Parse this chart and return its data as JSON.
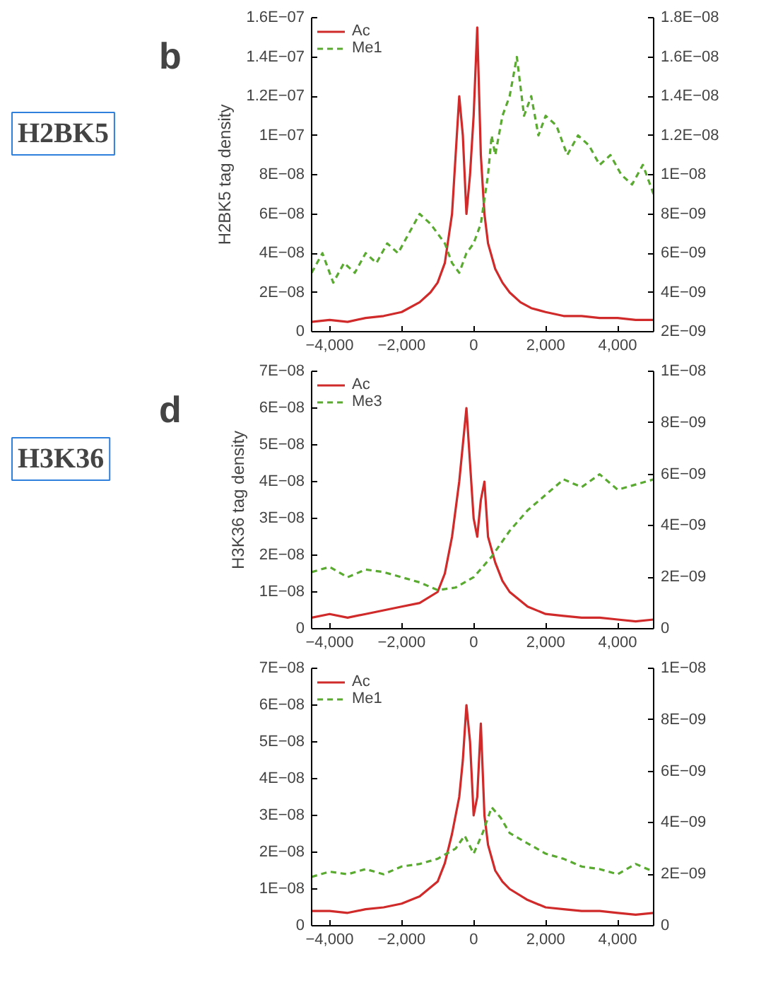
{
  "chart_data": [
    {
      "type": "line",
      "ylabel": "H2BK5 tag density",
      "annotations": [
        "b",
        "H2BK5"
      ],
      "legend": "top left",
      "xlim": [
        -4500,
        5000
      ],
      "xticks": [
        {
          "value": -4000,
          "label": "−4,000"
        },
        {
          "value": -2000,
          "label": "−2,000"
        },
        0,
        {
          "value": 2000,
          "label": "2,000"
        },
        {
          "value": 4000,
          "label": "4,000"
        }
      ],
      "ylim": [
        0,
        1.6e-07
      ],
      "yticks": [
        0,
        {
          "value": 2e-08,
          "label": "2E−08"
        },
        {
          "value": 4e-08,
          "label": "4E−08"
        },
        {
          "value": 6e-08,
          "label": "6E−08"
        },
        {
          "value": 8e-08,
          "label": "8E−08"
        },
        {
          "value": 1e-07,
          "label": "1E−07"
        },
        {
          "value": 1.2e-07,
          "label": "1.2E−07"
        },
        {
          "value": 1.4e-07,
          "label": "1.4E−07"
        },
        {
          "value": 1.6e-07,
          "label": "1.6E−07"
        }
      ],
      "y2lim": [
        2e-09,
        1.8e-08
      ],
      "y2ticks": [
        {
          "value": 2e-09,
          "label": "2E−09"
        },
        {
          "value": 4e-09,
          "label": "4E−09"
        },
        {
          "value": 6e-09,
          "label": "6E−09"
        },
        {
          "value": 8e-09,
          "label": "8E−09"
        },
        {
          "value": 1e-08,
          "label": "1E−08"
        },
        {
          "value": 1.2e-08,
          "label": "1.2E−08"
        },
        {
          "value": 1.4e-08,
          "label": "1.4E−08"
        },
        {
          "value": 1.6e-08,
          "label": "1.6E−08"
        },
        {
          "value": 1.8e-08,
          "label": "1.8E−08"
        }
      ],
      "series": [
        {
          "name": "Ac",
          "color": "#d02a2a",
          "line_style": "solid",
          "x": [
            -4500,
            -4000,
            -3500,
            -3000,
            -2500,
            -2000,
            -1500,
            -1200,
            -1000,
            -800,
            -600,
            -500,
            -400,
            -300,
            -200,
            -100,
            0,
            100,
            200,
            300,
            400,
            600,
            800,
            1000,
            1300,
            1600,
            2000,
            2500,
            3000,
            3500,
            4000,
            4500,
            5000
          ],
          "values": [
            5e-09,
            6e-09,
            5e-09,
            7e-09,
            8e-09,
            1e-08,
            1.5e-08,
            2e-08,
            2.5e-08,
            3.5e-08,
            6e-08,
            9e-08,
            1.2e-07,
            1e-07,
            6e-08,
            8e-08,
            1.1e-07,
            1.55e-07,
            9e-08,
            6e-08,
            4.5e-08,
            3.2e-08,
            2.5e-08,
            2e-08,
            1.5e-08,
            1.2e-08,
            1e-08,
            8e-09,
            8e-09,
            7e-09,
            7e-09,
            6e-09,
            6e-09
          ]
        },
        {
          "name": "Me1",
          "color": "#5aaa32",
          "line_style": "dashed",
          "axis": "y2",
          "x": [
            -4500,
            -4200,
            -3900,
            -3600,
            -3300,
            -3000,
            -2700,
            -2400,
            -2100,
            -1800,
            -1500,
            -1200,
            -1000,
            -800,
            -600,
            -400,
            -200,
            0,
            200,
            400,
            500,
            600,
            800,
            1000,
            1200,
            1400,
            1600,
            1800,
            2000,
            2300,
            2600,
            2900,
            3200,
            3500,
            3800,
            4100,
            4400,
            4700,
            5000
          ],
          "values": [
            5e-09,
            6e-09,
            4.5e-09,
            5.5e-09,
            5e-09,
            6e-09,
            5.5e-09,
            6.5e-09,
            6e-09,
            7e-09,
            8e-09,
            7.5e-09,
            7e-09,
            6.5e-09,
            5.5e-09,
            5e-09,
            6e-09,
            6.5e-09,
            7.5e-09,
            1e-08,
            1.2e-08,
            1.1e-08,
            1.3e-08,
            1.4e-08,
            1.6e-08,
            1.3e-08,
            1.4e-08,
            1.2e-08,
            1.3e-08,
            1.25e-08,
            1.1e-08,
            1.2e-08,
            1.15e-08,
            1.05e-08,
            1.1e-08,
            1e-08,
            9.5e-09,
            1.05e-08,
            9e-09
          ]
        }
      ]
    },
    {
      "type": "line",
      "ylabel": "H3K36 tag density",
      "annotations": [
        "d",
        "H3K36"
      ],
      "legend": "top left",
      "xlim": [
        -4500,
        5000
      ],
      "xticks": [
        {
          "value": -4000,
          "label": "−4,000"
        },
        {
          "value": -2000,
          "label": "−2,000"
        },
        0,
        {
          "value": 2000,
          "label": "2,000"
        },
        {
          "value": 4000,
          "label": "4,000"
        }
      ],
      "ylim": [
        0,
        7e-08
      ],
      "yticks": [
        0,
        {
          "value": 1e-08,
          "label": "1E−08"
        },
        {
          "value": 2e-08,
          "label": "2E−08"
        },
        {
          "value": 3e-08,
          "label": "3E−08"
        },
        {
          "value": 4e-08,
          "label": "4E−08"
        },
        {
          "value": 5e-08,
          "label": "5E−08"
        },
        {
          "value": 6e-08,
          "label": "6E−08"
        },
        {
          "value": 7e-08,
          "label": "7E−08"
        }
      ],
      "y2lim": [
        0,
        1e-08
      ],
      "y2ticks": [
        0,
        {
          "value": 2e-09,
          "label": "2E−09"
        },
        {
          "value": 4e-09,
          "label": "4E−09"
        },
        {
          "value": 6e-09,
          "label": "6E−09"
        },
        {
          "value": 8e-09,
          "label": "8E−09"
        },
        {
          "value": 1e-08,
          "label": "1E−08"
        }
      ],
      "series": [
        {
          "name": "Ac",
          "color": "#d02a2a",
          "line_style": "solid",
          "x": [
            -4500,
            -4000,
            -3500,
            -3000,
            -2500,
            -2000,
            -1500,
            -1000,
            -800,
            -600,
            -400,
            -300,
            -200,
            -100,
            0,
            100,
            200,
            300,
            400,
            600,
            800,
            1000,
            1500,
            2000,
            2500,
            3000,
            3500,
            4000,
            4500,
            5000
          ],
          "values": [
            3e-09,
            4e-09,
            3e-09,
            4e-09,
            5e-09,
            6e-09,
            7e-09,
            1e-08,
            1.5e-08,
            2.5e-08,
            4e-08,
            5e-08,
            6e-08,
            4.5e-08,
            3e-08,
            2.5e-08,
            3.5e-08,
            4e-08,
            2.5e-08,
            1.8e-08,
            1.3e-08,
            1e-08,
            6e-09,
            4e-09,
            3.5e-09,
            3e-09,
            3e-09,
            2.5e-09,
            2e-09,
            2.5e-09
          ]
        },
        {
          "name": "Me3",
          "color": "#5aaa32",
          "line_style": "dashed",
          "axis": "y2",
          "x": [
            -4500,
            -4000,
            -3500,
            -3000,
            -2500,
            -2000,
            -1500,
            -1000,
            -500,
            0,
            500,
            1000,
            1500,
            2000,
            2500,
            3000,
            3500,
            4000,
            4500,
            5000
          ],
          "values": [
            2.2e-09,
            2.4e-09,
            2e-09,
            2.3e-09,
            2.2e-09,
            2e-09,
            1.8e-09,
            1.5e-09,
            1.6e-09,
            2e-09,
            2.8e-09,
            3.8e-09,
            4.6e-09,
            5.2e-09,
            5.8e-09,
            5.5e-09,
            6e-09,
            5.4e-09,
            5.6e-09,
            5.8e-09
          ]
        }
      ]
    },
    {
      "type": "line",
      "legend": "top left",
      "xlim": [
        -4500,
        5000
      ],
      "xticks": [
        {
          "value": -4000,
          "label": "−4,000"
        },
        {
          "value": -2000,
          "label": "−2,000"
        },
        0,
        {
          "value": 2000,
          "label": "2,000"
        },
        {
          "value": 4000,
          "label": "4,000"
        }
      ],
      "ylim": [
        0,
        7e-08
      ],
      "yticks": [
        0,
        {
          "value": 1e-08,
          "label": "1E−08"
        },
        {
          "value": 2e-08,
          "label": "2E−08"
        },
        {
          "value": 3e-08,
          "label": "3E−08"
        },
        {
          "value": 4e-08,
          "label": "4E−08"
        },
        {
          "value": 5e-08,
          "label": "5E−08"
        },
        {
          "value": 6e-08,
          "label": "6E−08"
        },
        {
          "value": 7e-08,
          "label": "7E−08"
        }
      ],
      "y2lim": [
        0,
        1e-08
      ],
      "y2ticks": [
        0,
        {
          "value": 2e-09,
          "label": "2E−09"
        },
        {
          "value": 4e-09,
          "label": "4E−09"
        },
        {
          "value": 6e-09,
          "label": "6E−09"
        },
        {
          "value": 8e-09,
          "label": "8E−09"
        },
        {
          "value": 1e-08,
          "label": "1E−08"
        }
      ],
      "series": [
        {
          "name": "Ac",
          "color": "#d02a2a",
          "line_style": "solid",
          "x": [
            -4500,
            -4000,
            -3500,
            -3000,
            -2500,
            -2000,
            -1500,
            -1000,
            -800,
            -600,
            -400,
            -300,
            -200,
            -100,
            0,
            100,
            200,
            300,
            400,
            600,
            800,
            1000,
            1500,
            2000,
            2500,
            3000,
            3500,
            4000,
            4500,
            5000
          ],
          "values": [
            4e-09,
            4e-09,
            3.5e-09,
            4.5e-09,
            5e-09,
            6e-09,
            8e-09,
            1.2e-08,
            1.7e-08,
            2.5e-08,
            3.5e-08,
            4.5e-08,
            6e-08,
            5e-08,
            3e-08,
            3.5e-08,
            5.5e-08,
            3e-08,
            2.2e-08,
            1.5e-08,
            1.2e-08,
            1e-08,
            7e-09,
            5e-09,
            4.5e-09,
            4e-09,
            4e-09,
            3.5e-09,
            3e-09,
            3.5e-09
          ]
        },
        {
          "name": "Me1",
          "color": "#5aaa32",
          "line_style": "dashed",
          "axis": "y2",
          "x": [
            -4500,
            -4000,
            -3500,
            -3000,
            -2500,
            -2000,
            -1500,
            -1000,
            -500,
            -250,
            0,
            250,
            500,
            750,
            1000,
            1500,
            2000,
            2500,
            3000,
            3500,
            4000,
            4500,
            5000
          ],
          "values": [
            1.9e-09,
            2.1e-09,
            2e-09,
            2.2e-09,
            2e-09,
            2.3e-09,
            2.4e-09,
            2.6e-09,
            3e-09,
            3.5e-09,
            2.8e-09,
            3.6e-09,
            4.6e-09,
            4.2e-09,
            3.6e-09,
            3.2e-09,
            2.8e-09,
            2.6e-09,
            2.3e-09,
            2.2e-09,
            2e-09,
            2.4e-09,
            2.1e-09
          ]
        }
      ]
    }
  ]
}
